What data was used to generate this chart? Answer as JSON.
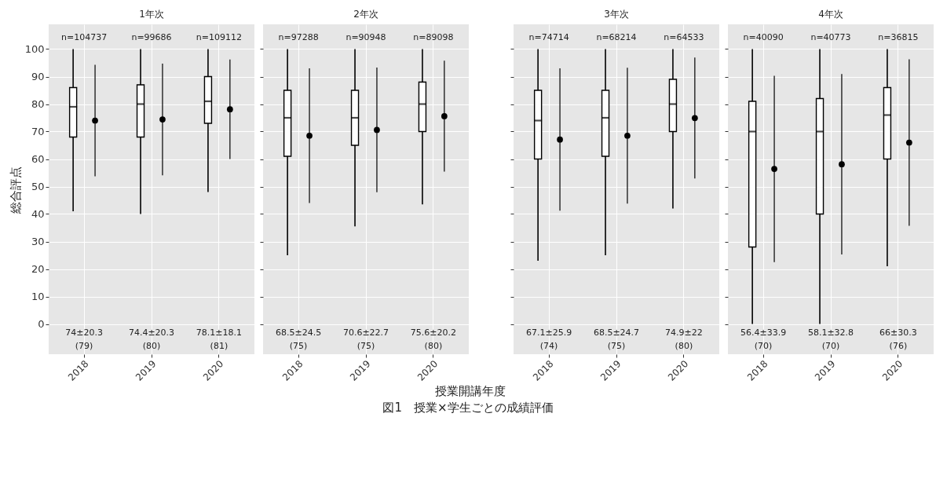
{
  "chart_data": [
    {
      "type": "box",
      "title": "1年次",
      "ylabel": "総合評点",
      "categories": [
        "2018",
        "2019",
        "2020"
      ],
      "ylim": [
        -11,
        109
      ],
      "yticks": [
        0,
        10,
        20,
        30,
        40,
        50,
        60,
        70,
        80,
        90,
        100
      ],
      "grid": true,
      "boxes": [
        {
          "low": 41,
          "q1": 68,
          "median": 79,
          "q3": 86,
          "high": 100
        },
        {
          "low": 40,
          "q1": 68,
          "median": 80,
          "q3": 87,
          "high": 100
        },
        {
          "low": 48,
          "q1": 73,
          "median": 81,
          "q3": 90,
          "high": 100
        }
      ],
      "series": [
        {
          "type": "scatter",
          "values": [
            74,
            74.4,
            78.1
          ],
          "errors": [
            20.3,
            20.3,
            18.1
          ],
          "color": "#000000"
        }
      ],
      "annotations": [
        "n=104737",
        "n=99686",
        "n=109112",
        "74±20.3",
        "74.4±20.3",
        "78.1±18.1",
        "(79)",
        "(80)",
        "(81)"
      ]
    },
    {
      "type": "box",
      "title": "2年次",
      "xlabel": "授業開講年度",
      "categories": [
        "2018",
        "2019",
        "2020"
      ],
      "ylim": [
        -11,
        109
      ],
      "yticks": [
        0,
        10,
        20,
        30,
        40,
        50,
        60,
        70,
        80,
        90,
        100
      ],
      "grid": true,
      "tick_labels": "x",
      "boxes": [
        {
          "low": 25,
          "q1": 61,
          "median": 75,
          "q3": 85,
          "high": 100
        },
        {
          "low": 35.5,
          "q1": 65,
          "median": 75,
          "q3": 85,
          "high": 100
        },
        {
          "low": 43.5,
          "q1": 70,
          "median": 80,
          "q3": 88,
          "high": 100
        }
      ],
      "series": [
        {
          "type": "scatter",
          "values": [
            68.5,
            70.6,
            75.6
          ],
          "errors": [
            24.5,
            22.7,
            20.2
          ],
          "color": "#000000"
        }
      ],
      "annotations": [
        "n=97288",
        "n=90948",
        "n=89098",
        "68.5±24.5",
        "70.6±22.7",
        "75.6±20.2",
        "(75)",
        "(75)",
        "(80)",
        "図1　授業×学生ごとの成績評価"
      ]
    },
    {
      "type": "box",
      "title": "3年次",
      "categories": [
        "2018",
        "2019",
        "2020"
      ],
      "ylim": [
        -11,
        109
      ],
      "yticks": [
        0,
        10,
        20,
        30,
        40,
        50,
        60,
        70,
        80,
        90,
        100
      ],
      "grid": true,
      "tick_labels": "x",
      "boxes": [
        {
          "low": 23,
          "q1": 60,
          "median": 74,
          "q3": 85,
          "high": 100
        },
        {
          "low": 25,
          "q1": 61,
          "median": 75,
          "q3": 85,
          "high": 100
        },
        {
          "low": 42,
          "q1": 70,
          "median": 80,
          "q3": 89,
          "high": 100
        }
      ],
      "series": [
        {
          "type": "scatter",
          "values": [
            67.1,
            68.5,
            74.9
          ],
          "errors": [
            25.9,
            24.7,
            22
          ],
          "color": "#000000"
        }
      ],
      "annotations": [
        "n=74714",
        "n=68214",
        "n=64533",
        "67.1±25.9",
        "68.5±24.7",
        "74.9±22",
        "(74)",
        "(75)",
        "(80)"
      ]
    },
    {
      "type": "box",
      "title": "4年次",
      "categories": [
        "2018",
        "2019",
        "2020"
      ],
      "ylim": [
        -11,
        109
      ],
      "yticks": [
        0,
        10,
        20,
        30,
        40,
        50,
        60,
        70,
        80,
        90,
        100
      ],
      "grid": true,
      "tick_labels": "x",
      "boxes": [
        {
          "low": 0,
          "q1": 28,
          "median": 70,
          "q3": 81,
          "high": 100
        },
        {
          "low": 0,
          "q1": 40,
          "median": 70,
          "q3": 82,
          "high": 100
        },
        {
          "low": 21,
          "q1": 60,
          "median": 76,
          "q3": 86,
          "high": 100
        }
      ],
      "series": [
        {
          "type": "scatter",
          "values": [
            56.4,
            58.1,
            66
          ],
          "errors": [
            33.9,
            32.8,
            30.3
          ],
          "color": "#000000"
        }
      ],
      "annotations": [
        "n=40090",
        "n=40773",
        "n=36815",
        "56.4±33.9",
        "58.1±32.8",
        "66±30.3",
        "(70)",
        "(70)",
        "(76)"
      ]
    }
  ]
}
